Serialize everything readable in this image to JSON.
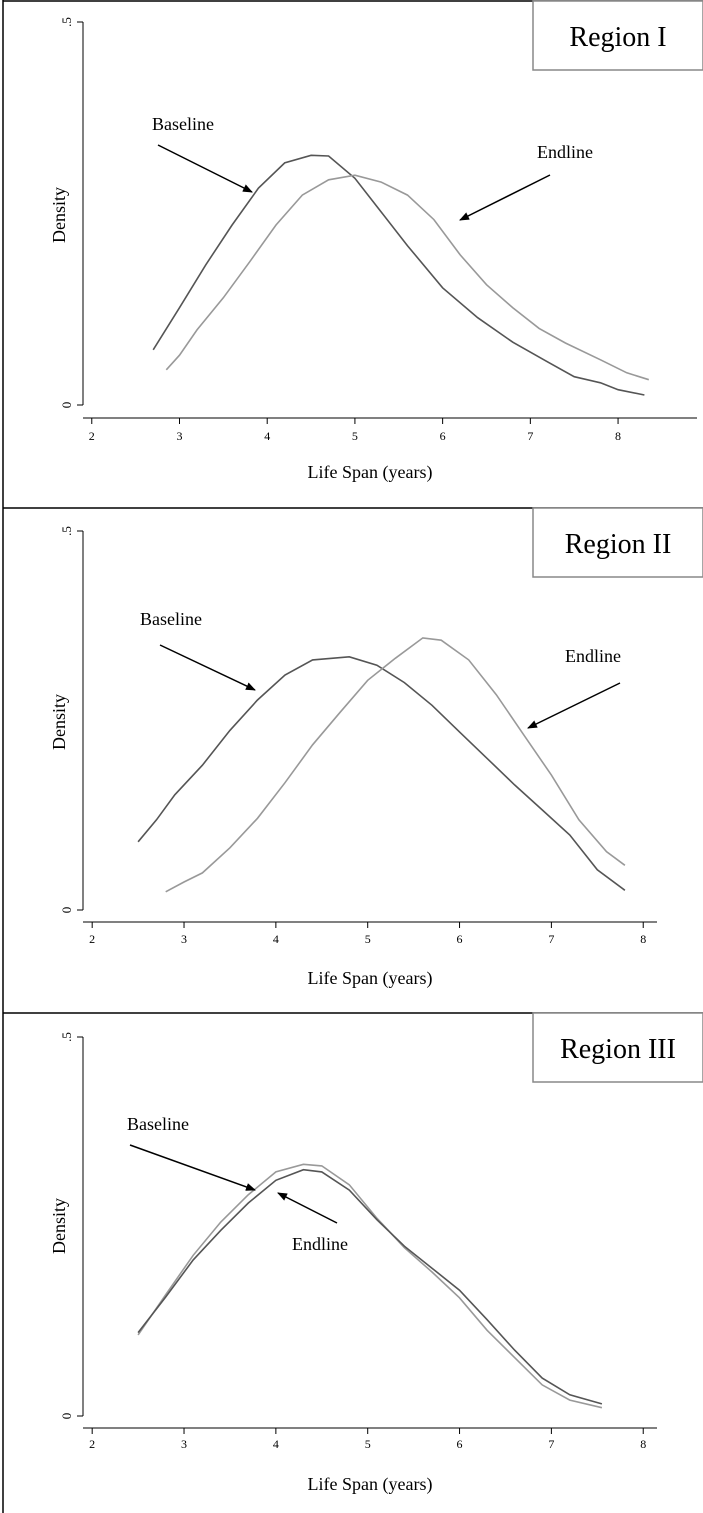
{
  "chart_data": [
    {
      "type": "line",
      "title": "Region I",
      "x_label": "Life Span (years)",
      "y_label": "Density",
      "xlim": [
        1.9,
        8.9
      ],
      "ylim": [
        0,
        0.5
      ],
      "xticks": [
        2,
        3,
        4,
        5,
        6,
        7,
        8
      ],
      "yticks": [
        0,
        {
          "value": 0.5,
          "label": ".5"
        }
      ],
      "series": [
        {
          "name": "Baseline",
          "color": "#555555",
          "x": [
            2.7,
            3.0,
            3.3,
            3.6,
            3.9,
            4.2,
            4.5,
            4.7,
            5.0,
            5.3,
            5.6,
            6.0,
            6.4,
            6.8,
            7.2,
            7.5,
            7.8,
            8.0,
            8.3
          ],
          "values": [
            0.072,
            0.127,
            0.183,
            0.235,
            0.283,
            0.316,
            0.326,
            0.325,
            0.296,
            0.252,
            0.208,
            0.153,
            0.114,
            0.082,
            0.056,
            0.037,
            0.029,
            0.02,
            0.013
          ]
        },
        {
          "name": "Endline",
          "color": "#999999",
          "x": [
            2.85,
            3.0,
            3.2,
            3.5,
            3.8,
            4.1,
            4.4,
            4.7,
            5.0,
            5.3,
            5.6,
            5.9,
            6.2,
            6.5,
            6.8,
            7.1,
            7.4,
            7.8,
            8.1,
            8.35
          ],
          "values": [
            0.046,
            0.065,
            0.098,
            0.14,
            0.187,
            0.235,
            0.274,
            0.294,
            0.3,
            0.291,
            0.274,
            0.242,
            0.196,
            0.157,
            0.127,
            0.1,
            0.081,
            0.059,
            0.042,
            0.033
          ]
        }
      ]
    },
    {
      "type": "line",
      "title": "Region II",
      "x_label": "Life Span (years)",
      "y_label": "Density",
      "xlim": [
        1.9,
        8.15
      ],
      "ylim": [
        0,
        0.5
      ],
      "xticks": [
        2,
        3,
        4,
        5,
        6,
        7,
        8
      ],
      "yticks": [
        0,
        {
          "value": 0.5,
          "label": ".5"
        }
      ],
      "series": [
        {
          "name": "Baseline",
          "color": "#555555",
          "x": [
            2.5,
            2.7,
            2.9,
            3.2,
            3.5,
            3.8,
            4.1,
            4.4,
            4.8,
            5.1,
            5.4,
            5.7,
            6.0,
            6.3,
            6.6,
            6.9,
            7.2,
            7.5,
            7.8
          ],
          "values": [
            0.09,
            0.119,
            0.152,
            0.191,
            0.237,
            0.277,
            0.31,
            0.33,
            0.334,
            0.323,
            0.3,
            0.27,
            0.235,
            0.2,
            0.165,
            0.132,
            0.099,
            0.053,
            0.026
          ]
        },
        {
          "name": "Endline",
          "color": "#999999",
          "x": [
            2.8,
            3.0,
            3.2,
            3.5,
            3.8,
            4.1,
            4.4,
            4.7,
            5.0,
            5.3,
            5.6,
            5.8,
            6.1,
            6.4,
            6.7,
            7.0,
            7.3,
            7.6,
            7.8
          ],
          "values": [
            0.024,
            0.037,
            0.049,
            0.082,
            0.121,
            0.168,
            0.218,
            0.261,
            0.303,
            0.332,
            0.359,
            0.356,
            0.33,
            0.284,
            0.231,
            0.178,
            0.119,
            0.077,
            0.059
          ]
        }
      ]
    },
    {
      "type": "line",
      "title": "Region III",
      "x_label": "Life Span (years)",
      "y_label": "Density",
      "xlim": [
        1.9,
        8.15
      ],
      "ylim": [
        0,
        0.5
      ],
      "xticks": [
        2,
        3,
        4,
        5,
        6,
        7,
        8
      ],
      "yticks": [
        0,
        {
          "value": 0.5,
          "label": ".5"
        }
      ],
      "series": [
        {
          "name": "Baseline",
          "color": "#999999",
          "x": [
            2.5,
            2.8,
            3.1,
            3.4,
            3.7,
            4.0,
            4.3,
            4.5,
            4.8,
            5.1,
            5.4,
            5.7,
            6.0,
            6.3,
            6.6,
            6.9,
            7.2,
            7.55
          ],
          "values": [
            0.107,
            0.16,
            0.212,
            0.256,
            0.292,
            0.322,
            0.332,
            0.33,
            0.305,
            0.261,
            0.222,
            0.19,
            0.156,
            0.113,
            0.077,
            0.041,
            0.021,
            0.011
          ]
        },
        {
          "name": "Endline",
          "color": "#555555",
          "x": [
            2.5,
            2.8,
            3.1,
            3.4,
            3.7,
            4.0,
            4.3,
            4.5,
            4.8,
            5.1,
            5.4,
            5.7,
            6.0,
            6.3,
            6.6,
            6.9,
            7.2,
            7.55
          ],
          "values": [
            0.11,
            0.157,
            0.206,
            0.245,
            0.281,
            0.311,
            0.325,
            0.322,
            0.298,
            0.259,
            0.224,
            0.195,
            0.166,
            0.127,
            0.087,
            0.05,
            0.028,
            0.016
          ]
        }
      ]
    }
  ]
}
